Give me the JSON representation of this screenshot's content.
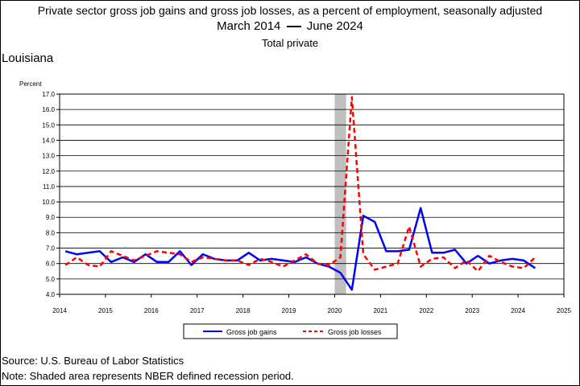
{
  "header": {
    "title": "Private sector gross job gains and gross job losses, as a percent of employment, seasonally adjusted",
    "subtitle_start": "March 2014",
    "subtitle_end": "June 2024",
    "series_scope": "Total private"
  },
  "region": "Louisiana",
  "footer": {
    "source": "Source: U.S. Bureau of Labor Statistics",
    "note": "Note: Shaded area represents NBER defined recession period."
  },
  "colors": {
    "gains": "#0000ff",
    "losses": "#ff0000",
    "recession": "#bfbfbf"
  },
  "chart_data": {
    "type": "line",
    "title": "Private sector gross job gains and gross job losses, as a percent of employment, seasonally adjusted",
    "ylabel": "Percent",
    "xlabel": "",
    "xlim": [
      2014,
      2025
    ],
    "ylim": [
      4.0,
      17.0
    ],
    "x_ticks": [
      "2014",
      "2015",
      "2016",
      "2017",
      "2018",
      "2019",
      "2020",
      "2021",
      "2022",
      "2023",
      "2024",
      "2025"
    ],
    "y_ticks": [
      "4.0",
      "5.0",
      "6.0",
      "7.0",
      "8.0",
      "9.0",
      "10.0",
      "11.0",
      "12.0",
      "13.0",
      "14.0",
      "15.0",
      "16.0",
      "17.0"
    ],
    "grid": "horizontal",
    "legend_position": "bottom-center",
    "recession_shade": {
      "start": "2020-Q1",
      "end": "2020-Q2"
    },
    "x": [
      "2014-Q1",
      "2014-Q2",
      "2014-Q3",
      "2014-Q4",
      "2015-Q1",
      "2015-Q2",
      "2015-Q3",
      "2015-Q4",
      "2016-Q1",
      "2016-Q2",
      "2016-Q3",
      "2016-Q4",
      "2017-Q1",
      "2017-Q2",
      "2017-Q3",
      "2017-Q4",
      "2018-Q1",
      "2018-Q2",
      "2018-Q3",
      "2018-Q4",
      "2019-Q1",
      "2019-Q2",
      "2019-Q3",
      "2019-Q4",
      "2020-Q1",
      "2020-Q2",
      "2020-Q3",
      "2020-Q4",
      "2021-Q1",
      "2021-Q2",
      "2021-Q3",
      "2021-Q4",
      "2022-Q1",
      "2022-Q2",
      "2022-Q3",
      "2022-Q4",
      "2023-Q1",
      "2023-Q2",
      "2023-Q3",
      "2023-Q4",
      "2024-Q1",
      "2024-Q2"
    ],
    "series": [
      {
        "name": "Gross job gains",
        "style": "solid",
        "values": [
          6.8,
          6.6,
          6.7,
          6.8,
          6.1,
          6.4,
          6.1,
          6.6,
          6.1,
          6.1,
          6.8,
          5.9,
          6.6,
          6.3,
          6.2,
          6.2,
          6.7,
          6.2,
          6.3,
          6.2,
          6.1,
          6.4,
          6.0,
          5.8,
          5.4,
          4.3,
          9.1,
          8.7,
          6.8,
          6.8,
          6.9,
          9.6,
          6.7,
          6.7,
          6.9,
          6.0,
          6.5,
          6.0,
          6.2,
          6.3,
          6.2,
          5.7
        ]
      },
      {
        "name": "Gross job losses",
        "style": "dashed",
        "values": [
          5.9,
          6.4,
          5.9,
          5.8,
          6.8,
          6.5,
          6.2,
          6.5,
          6.8,
          6.7,
          6.6,
          6.1,
          6.4,
          6.3,
          6.2,
          6.2,
          5.9,
          6.3,
          6.1,
          5.8,
          6.2,
          6.6,
          6.0,
          5.9,
          6.4,
          16.8,
          6.6,
          5.6,
          5.8,
          6.0,
          8.4,
          5.8,
          6.3,
          6.4,
          5.7,
          6.2,
          5.5,
          6.5,
          6.1,
          5.8,
          5.7,
          6.4
        ]
      }
    ]
  }
}
